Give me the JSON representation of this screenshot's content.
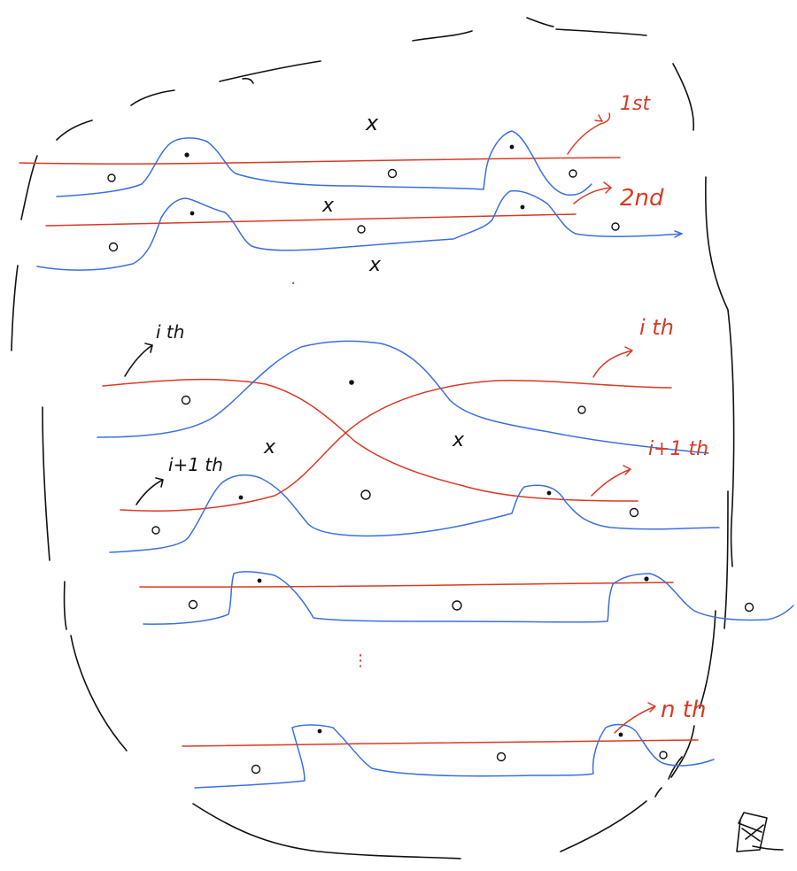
{
  "labels": {
    "first": "1st",
    "second": "2nd",
    "ith_left": "i th",
    "ith_right": "i th",
    "i1th_left": "i+1 th",
    "i1th_right": "i+1 th",
    "nth": "n th"
  },
  "marks": {
    "cross": "x",
    "dots": "·",
    "ellipsis": "⋮"
  },
  "colors": {
    "boundary": "#111111",
    "blue_curve": "#3a6fe0",
    "red_curve": "#d93a24"
  }
}
